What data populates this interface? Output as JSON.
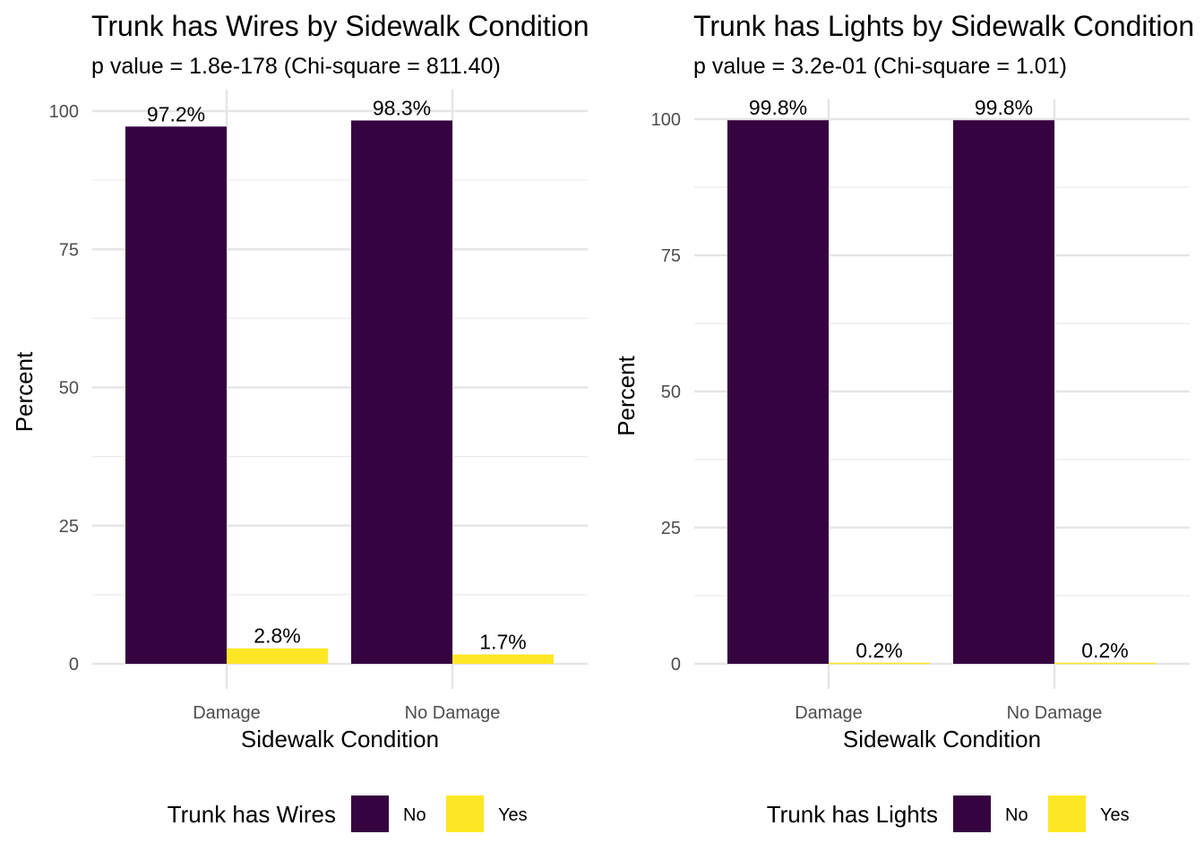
{
  "chart_data": [
    {
      "type": "bar",
      "title": "Trunk has Wires by Sidewalk Condition",
      "subtitle": "p value = 1.8e-178 (Chi-square = 811.40)",
      "xlabel": "Sidewalk Condition",
      "ylabel": "Percent",
      "categories": [
        "Damage",
        "No Damage"
      ],
      "series": [
        {
          "name": "No",
          "color": "#360341",
          "values": [
            97.2,
            98.3
          ],
          "labels": [
            "97.2%",
            "98.3%"
          ]
        },
        {
          "name": "Yes",
          "color": "#FDE725",
          "values": [
            2.8,
            1.7
          ],
          "labels": [
            "2.8%",
            "1.7%"
          ]
        }
      ],
      "ylim": [
        0,
        100
      ],
      "yticks": [
        0,
        25,
        50,
        75,
        100
      ],
      "legend": {
        "title": "Trunk has Wires",
        "position": "bottom"
      },
      "grid": true
    },
    {
      "type": "bar",
      "title": "Trunk has Lights by Sidewalk Condition",
      "subtitle": "p value = 3.2e-01 (Chi-square = 1.01)",
      "xlabel": "Sidewalk Condition",
      "ylabel": "Percent",
      "categories": [
        "Damage",
        "No Damage"
      ],
      "series": [
        {
          "name": "No",
          "color": "#360341",
          "values": [
            99.8,
            99.8
          ],
          "labels": [
            "99.8%",
            "99.8%"
          ]
        },
        {
          "name": "Yes",
          "color": "#FDE725",
          "values": [
            0.2,
            0.2
          ],
          "labels": [
            "0.2%",
            "0.2%"
          ]
        }
      ],
      "ylim": [
        0,
        100
      ],
      "yticks": [
        0,
        25,
        50,
        75,
        100
      ],
      "legend": {
        "title": "Trunk has Lights",
        "position": "bottom"
      },
      "grid": true
    }
  ]
}
